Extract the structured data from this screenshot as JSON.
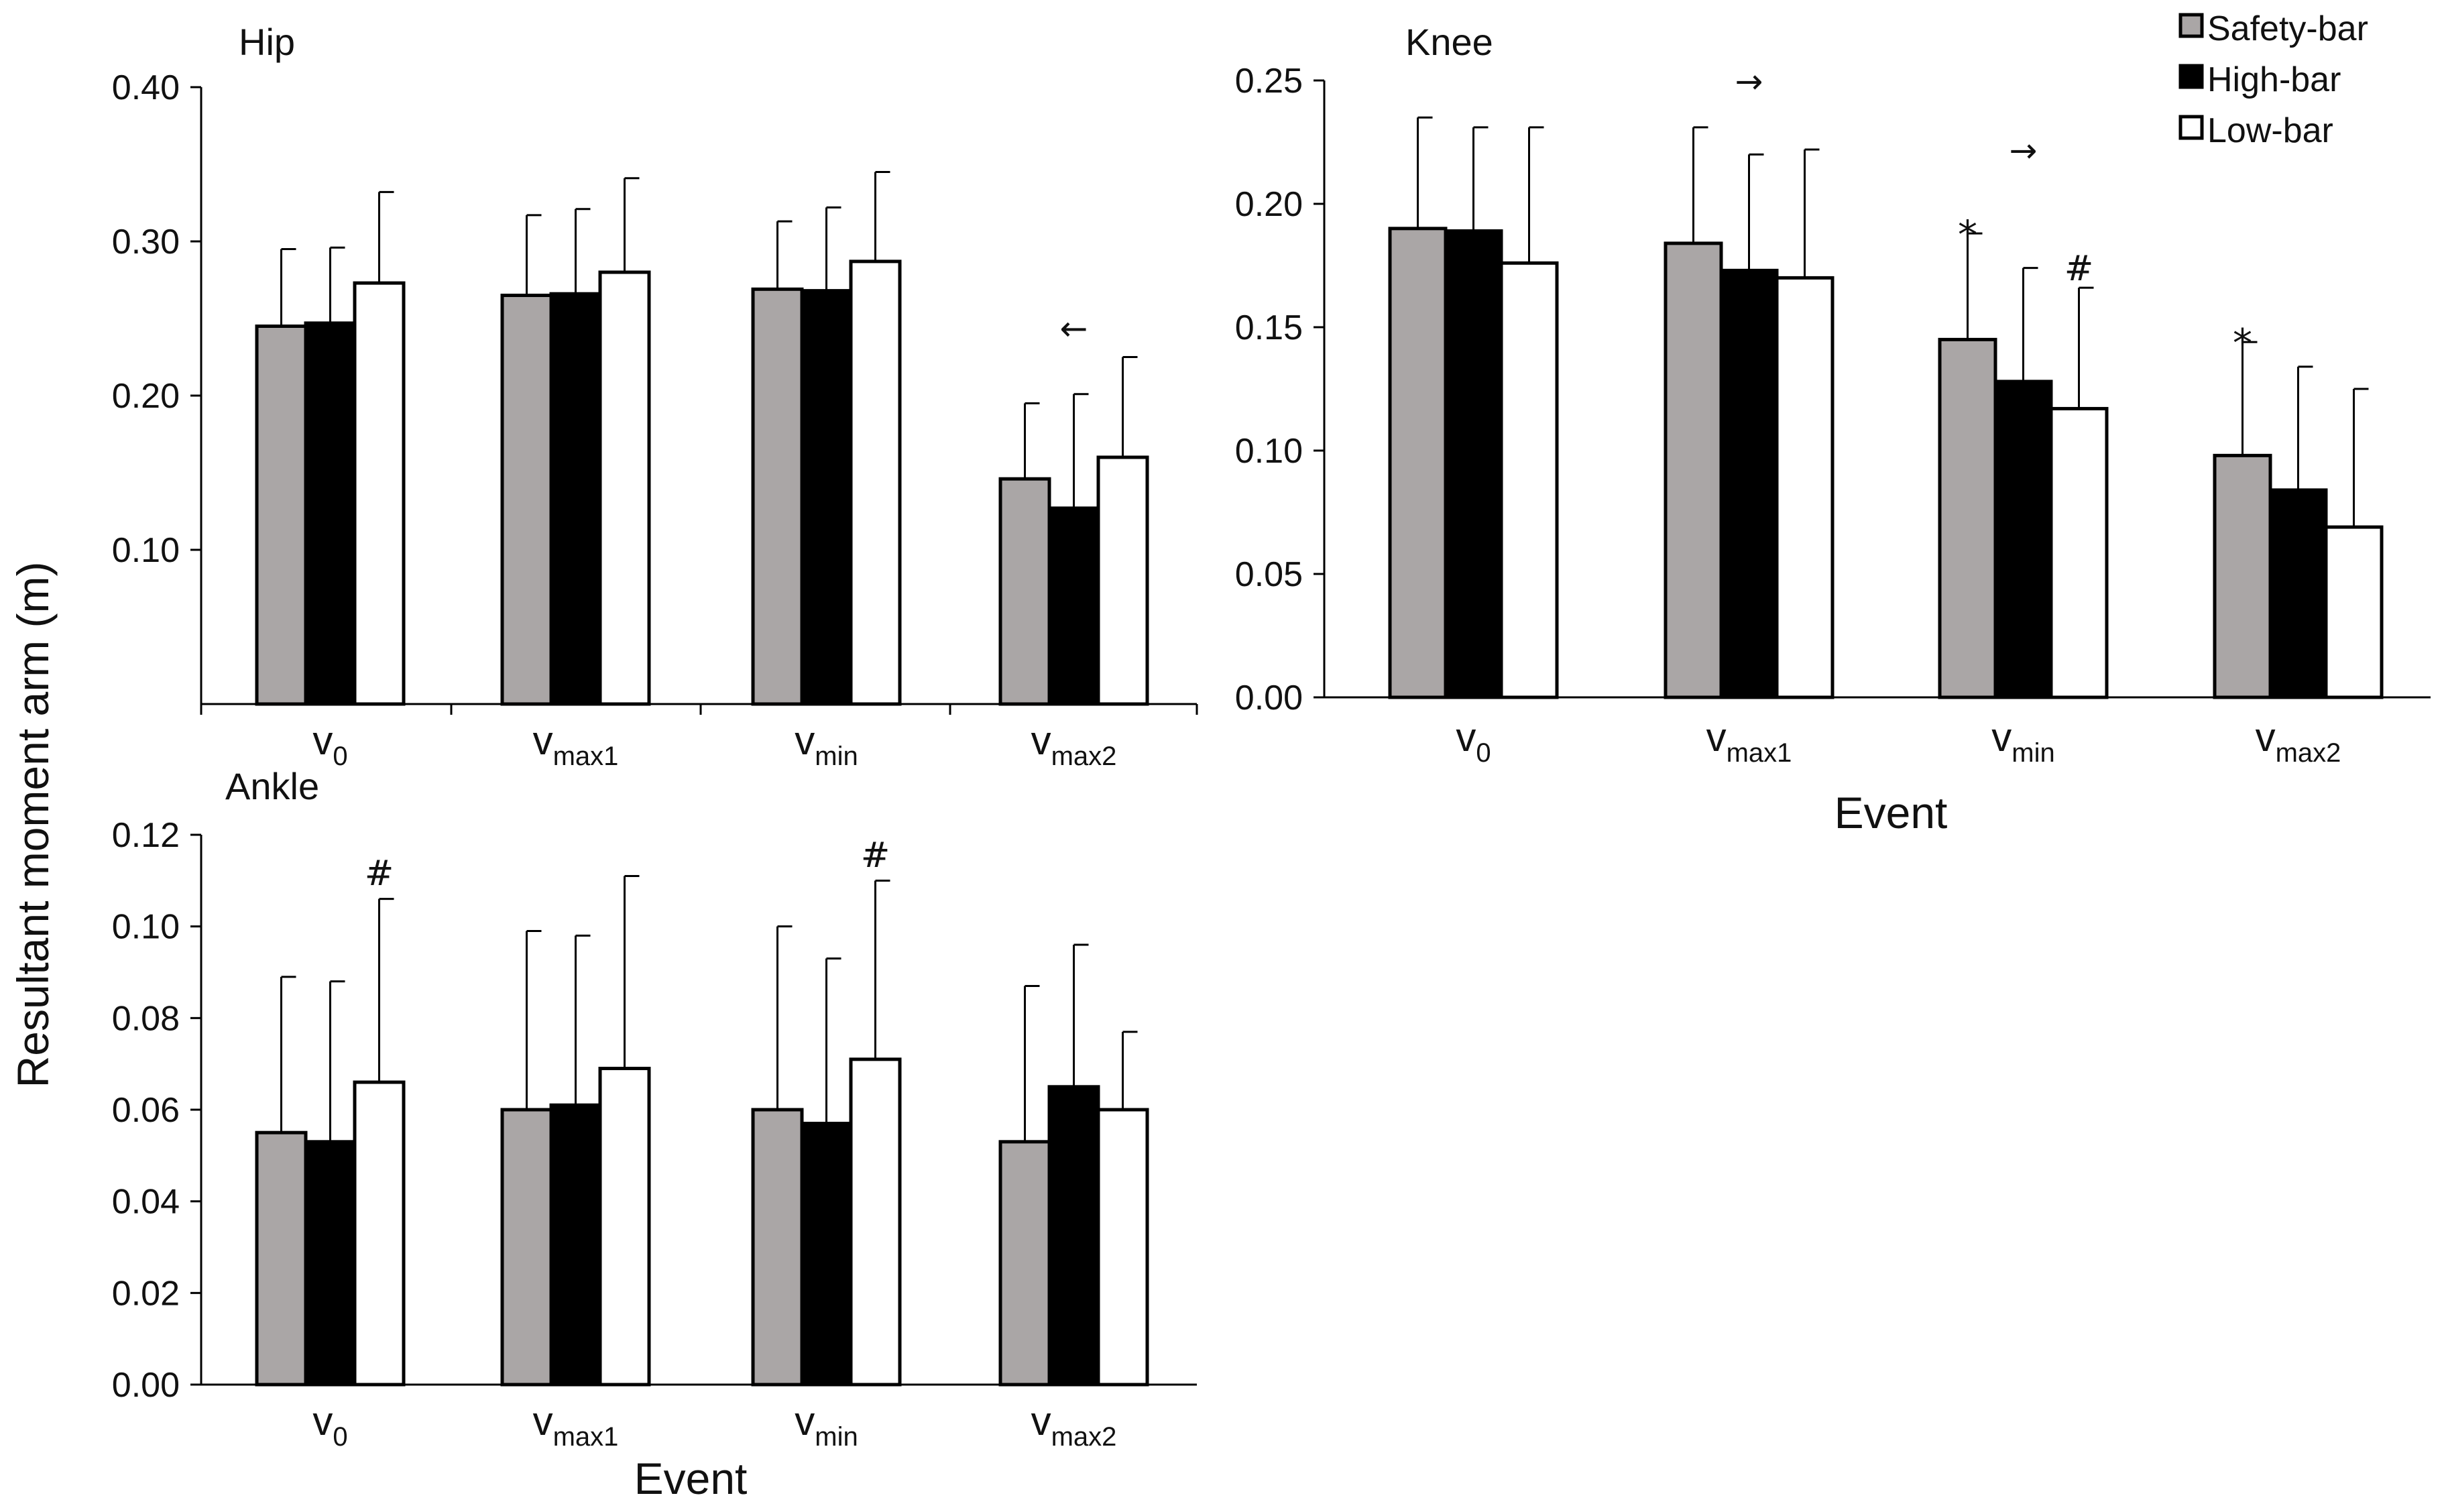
{
  "y_axis_title": "Resultant moment arm (m)",
  "colors": {
    "Safety-bar": "#aaa6a6",
    "High-bar": "#000000",
    "Low-bar": "#ffffff",
    "stroke": "#000000"
  },
  "legend": [
    {
      "label": "Safety-bar",
      "color": "#aaa6a6"
    },
    {
      "label": "High-bar",
      "color": "#000000"
    },
    {
      "label": "Low-bar",
      "color": "#ffffff"
    }
  ],
  "chart_data": [
    {
      "type": "bar",
      "id": "hip",
      "title": "Hip",
      "xlabel": "",
      "ylabel": "Resultant moment arm (m)",
      "ylim": [
        0,
        0.4
      ],
      "yticks": [
        0.1,
        0.2,
        0.3,
        0.4
      ],
      "ytick_labels": [
        "0.10",
        "0.20",
        "0.30",
        "0.40"
      ],
      "categories": [
        {
          "main": "v",
          "sub": "0"
        },
        {
          "main": "v",
          "sub": "max1"
        },
        {
          "main": "v",
          "sub": "min"
        },
        {
          "main": "v",
          "sub": "max2"
        }
      ],
      "series": [
        {
          "name": "Safety-bar",
          "values": [
            0.245,
            0.265,
            0.269,
            0.146
          ],
          "errors": [
            0.05,
            0.052,
            0.044,
            0.049
          ]
        },
        {
          "name": "High-bar",
          "values": [
            0.247,
            0.266,
            0.268,
            0.127
          ],
          "errors": [
            0.049,
            0.055,
            0.054,
            0.074
          ]
        },
        {
          "name": "Low-bar",
          "values": [
            0.273,
            0.28,
            0.287,
            0.16
          ],
          "errors": [
            0.059,
            0.061,
            0.058,
            0.065
          ]
        }
      ],
      "annotations": [
        {
          "symbol": "←",
          "kind": "arrow",
          "category": 3,
          "series": 1,
          "value": 0.236
        }
      ]
    },
    {
      "type": "bar",
      "id": "knee",
      "title": "Knee",
      "xlabel": "Event",
      "ylabel": "",
      "ylim": [
        0,
        0.25
      ],
      "yticks": [
        0.0,
        0.05,
        0.1,
        0.15,
        0.2,
        0.25
      ],
      "ytick_labels": [
        "0.00",
        "0.05",
        "0.10",
        "0.15",
        "0.20",
        "0.25"
      ],
      "categories": [
        {
          "main": "v",
          "sub": "0"
        },
        {
          "main": "v",
          "sub": "max1"
        },
        {
          "main": "v",
          "sub": "min"
        },
        {
          "main": "v",
          "sub": "max2"
        }
      ],
      "series": [
        {
          "name": "Safety-bar",
          "values": [
            0.19,
            0.184,
            0.145,
            0.098
          ],
          "errors": [
            0.045,
            0.047,
            0.043,
            0.046
          ]
        },
        {
          "name": "High-bar",
          "values": [
            0.189,
            0.173,
            0.128,
            0.084
          ],
          "errors": [
            0.042,
            0.047,
            0.046,
            0.05
          ]
        },
        {
          "name": "Low-bar",
          "values": [
            0.176,
            0.17,
            0.117,
            0.069
          ],
          "errors": [
            0.055,
            0.052,
            0.049,
            0.056
          ]
        }
      ],
      "annotations": [
        {
          "symbol": "→",
          "kind": "arrow",
          "category": 1,
          "series": 1,
          "value": 0.245
        },
        {
          "symbol": "*",
          "kind": "star",
          "category": 2,
          "series": 0,
          "value": 0.193
        },
        {
          "symbol": "#",
          "kind": "hash",
          "category": 2,
          "series": 2,
          "value": 0.169
        },
        {
          "symbol": "→",
          "kind": "arrow",
          "category": 2,
          "series": 1,
          "value": 0.217
        },
        {
          "symbol": "*",
          "kind": "star",
          "category": 3,
          "series": 0,
          "value": 0.149
        }
      ]
    },
    {
      "type": "bar",
      "id": "ankle",
      "title": "Ankle",
      "xlabel": "Event",
      "ylabel": "",
      "ylim": [
        0,
        0.12
      ],
      "yticks": [
        0.0,
        0.02,
        0.04,
        0.06,
        0.08,
        0.1,
        0.12
      ],
      "ytick_labels": [
        "0.00",
        "0.02",
        "0.04",
        "0.06",
        "0.08",
        "0.10",
        "0.12"
      ],
      "categories": [
        {
          "main": "v",
          "sub": "0"
        },
        {
          "main": "v",
          "sub": "max1"
        },
        {
          "main": "v",
          "sub": "min"
        },
        {
          "main": "v",
          "sub": "max2"
        }
      ],
      "series": [
        {
          "name": "Safety-bar",
          "values": [
            0.055,
            0.06,
            0.06,
            0.053
          ],
          "errors": [
            0.034,
            0.039,
            0.04,
            0.034
          ]
        },
        {
          "name": "High-bar",
          "values": [
            0.053,
            0.061,
            0.057,
            0.065
          ],
          "errors": [
            0.035,
            0.037,
            0.036,
            0.031
          ]
        },
        {
          "name": "Low-bar",
          "values": [
            0.066,
            0.069,
            0.071,
            0.06
          ],
          "errors": [
            0.04,
            0.042,
            0.039,
            0.017
          ]
        }
      ],
      "annotations": [
        {
          "symbol": "#",
          "kind": "hash",
          "category": 0,
          "series": 2,
          "value": 0.109
        },
        {
          "symbol": "#",
          "kind": "hash",
          "category": 2,
          "series": 2,
          "value": 0.113
        }
      ]
    }
  ]
}
